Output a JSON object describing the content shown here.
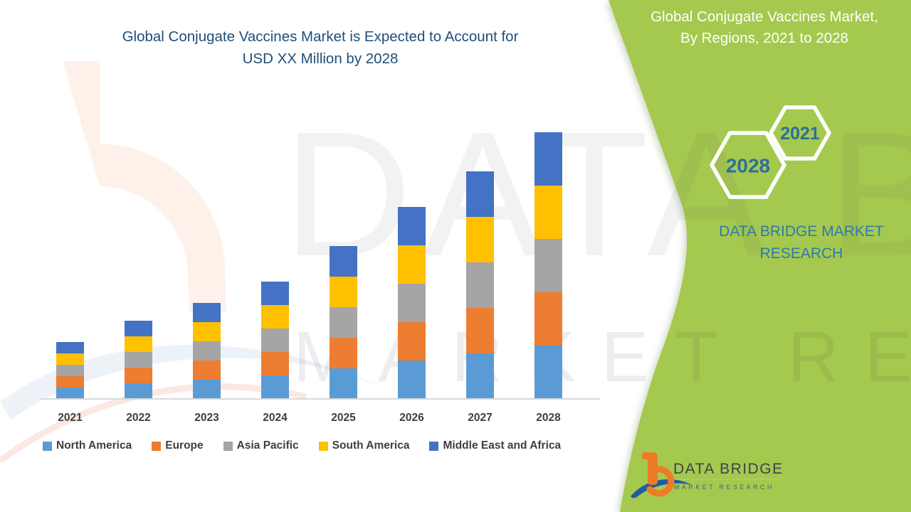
{
  "page": {
    "background": "#ffffff"
  },
  "chart": {
    "title_line1": "Global Conjugate Vaccines Market is Expected to Account for",
    "title_line2": "USD XX Million by 2028",
    "title_color": "#1F4E79"
  },
  "chart_data": {
    "type": "bar",
    "stacked": true,
    "title": "Global Conjugate Vaccines Market is Expected to Account for USD XX Million by 2028",
    "xlabel": "",
    "ylabel": "",
    "y_axis_visible": false,
    "grid": false,
    "legend_position": "bottom",
    "categories": [
      "2021",
      "2022",
      "2023",
      "2024",
      "2025",
      "2026",
      "2027",
      "2028"
    ],
    "series": [
      {
        "name": "North America",
        "color": "#5B9BD5",
        "values": [
          16,
          22,
          27,
          33,
          43,
          54,
          64,
          75
        ]
      },
      {
        "name": "Europe",
        "color": "#ED7D31",
        "values": [
          16,
          22,
          27,
          33,
          43,
          54,
          64,
          75
        ]
      },
      {
        "name": "Asia Pacific",
        "color": "#A5A5A5",
        "values": [
          16,
          22,
          27,
          33,
          43,
          54,
          64,
          75
        ]
      },
      {
        "name": "South America",
        "color": "#FFC000",
        "values": [
          16,
          22,
          27,
          33,
          43,
          54,
          64,
          75
        ]
      },
      {
        "name": "Middle East and Africa",
        "color": "#4472C4",
        "values": [
          16,
          22,
          27,
          33,
          43,
          54,
          64,
          75
        ]
      }
    ],
    "totals_relative": [
      80,
      110,
      135,
      165,
      215,
      270,
      320,
      375
    ],
    "note": "Y-axis is unlabeled (market value shown as USD XX Million placeholder); values are relative estimates read from bar heights, each year's five regional segments are approximately equal."
  },
  "side_panel": {
    "background": "#A5C94E",
    "title_line1": "Global Conjugate Vaccines Market,",
    "title_line2": "By Regions, 2021 to 2028",
    "hexagon_small_label": "2021",
    "hexagon_large_label": "2028",
    "hexagon_text_color": "#2d6f9a",
    "brand_line1": "DATA BRIDGE MARKET",
    "brand_line2": "RESEARCH"
  },
  "logo": {
    "name": "DATA BRIDGE",
    "subtitle": "MARKET RESEARCH"
  },
  "watermarks": {
    "row1": "DATA BRIDGE",
    "row2": "MARKET RESEARCH"
  }
}
